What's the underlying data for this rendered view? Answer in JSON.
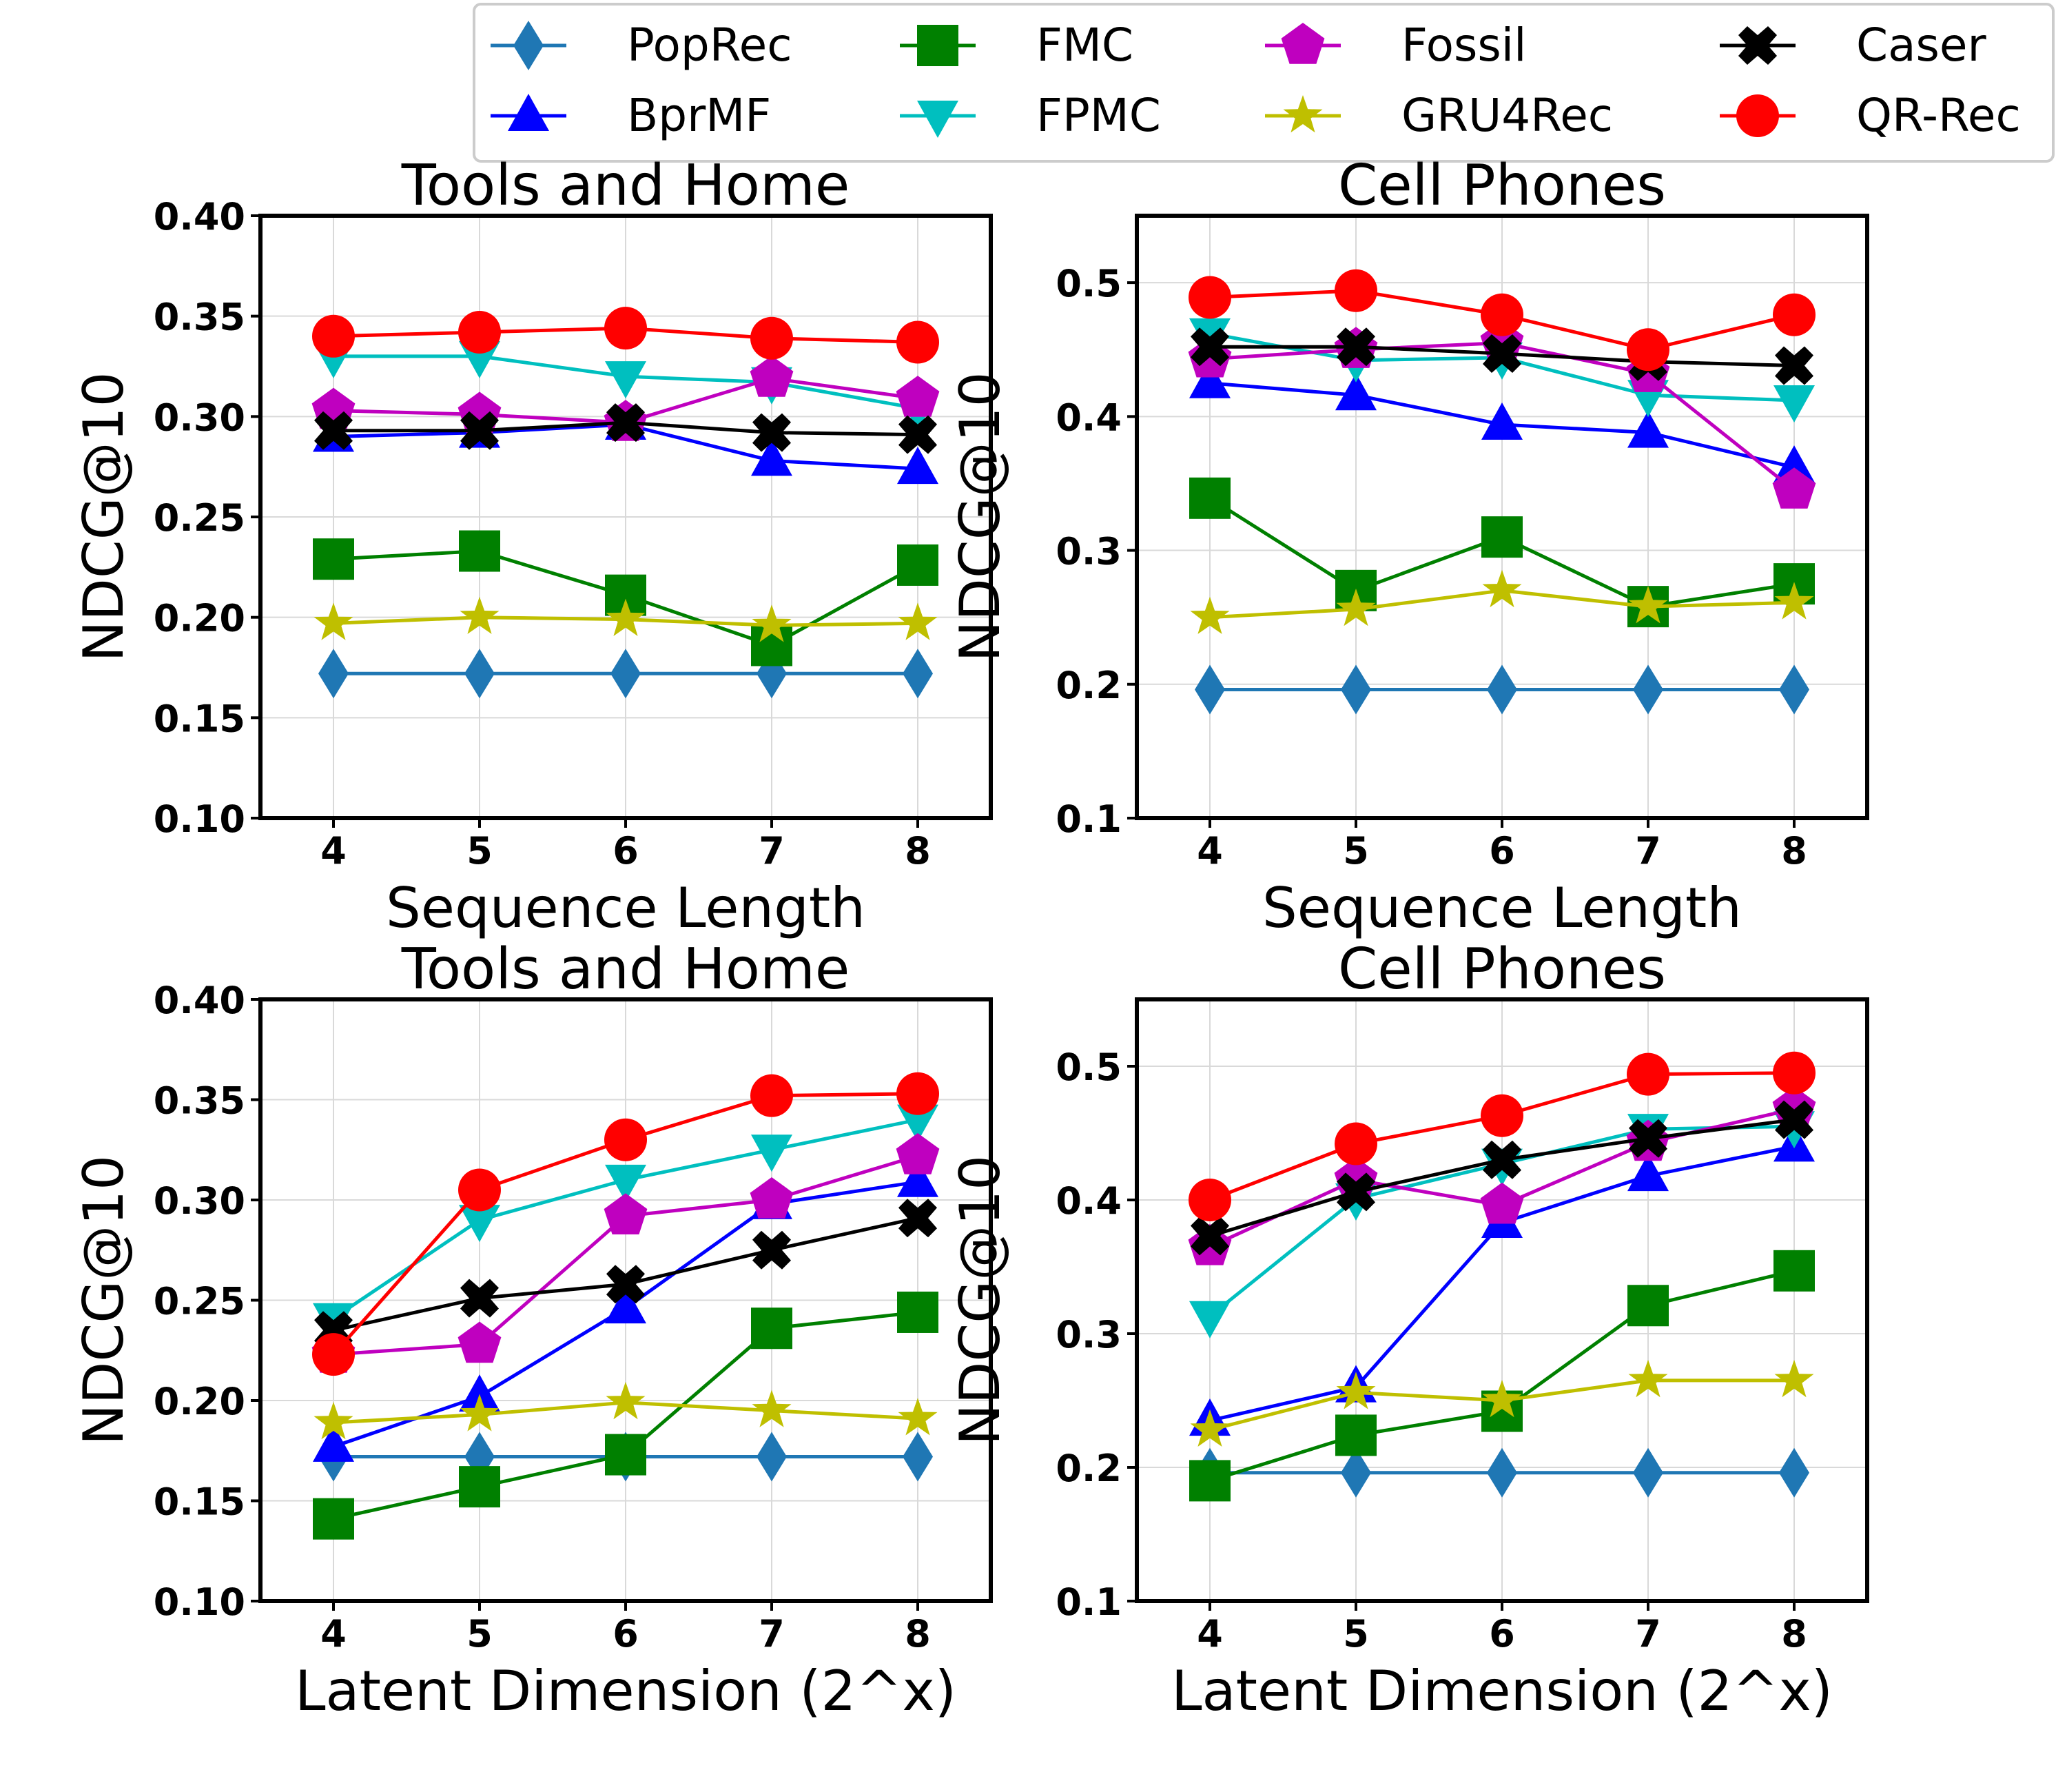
{
  "legend": [
    {
      "name": "PopRec",
      "color": "#1f77b4",
      "marker": "diamond"
    },
    {
      "name": "FMC",
      "color": "#008000",
      "marker": "square"
    },
    {
      "name": "Fossil",
      "color": "#bf00bf",
      "marker": "pentagon"
    },
    {
      "name": "Caser",
      "color": "#000000",
      "marker": "x"
    },
    {
      "name": "BprMF",
      "color": "#0000ff",
      "marker": "triangle-up"
    },
    {
      "name": "FPMC",
      "color": "#00bfbf",
      "marker": "triangle-down"
    },
    {
      "name": "GRU4Rec",
      "color": "#bfbf00",
      "marker": "star"
    },
    {
      "name": "QR-Rec",
      "color": "#ff0000",
      "marker": "circle"
    }
  ],
  "chart_data": [
    {
      "type": "line",
      "title": "Tools and Home",
      "xlabel": "Sequence Length",
      "ylabel": "NDCG@10",
      "x": [
        4,
        5,
        6,
        7,
        8
      ],
      "ylim": [
        0.1,
        0.4
      ],
      "yticks": [
        "0.10",
        "0.15",
        "0.20",
        "0.25",
        "0.30",
        "0.35",
        "0.40"
      ],
      "series": [
        {
          "name": "PopRec",
          "values": [
            0.172,
            0.172,
            0.172,
            0.172,
            0.172
          ]
        },
        {
          "name": "BprMF",
          "values": [
            0.29,
            0.292,
            0.296,
            0.278,
            0.274
          ]
        },
        {
          "name": "FMC",
          "values": [
            0.229,
            0.233,
            0.211,
            0.186,
            0.226
          ]
        },
        {
          "name": "FPMC",
          "values": [
            0.33,
            0.33,
            0.32,
            0.317,
            0.304
          ]
        },
        {
          "name": "Fossil",
          "values": [
            0.303,
            0.301,
            0.297,
            0.319,
            0.309
          ]
        },
        {
          "name": "GRU4Rec",
          "values": [
            0.197,
            0.2,
            0.199,
            0.196,
            0.197
          ]
        },
        {
          "name": "Caser",
          "values": [
            0.293,
            0.293,
            0.297,
            0.292,
            0.291
          ]
        },
        {
          "name": "QR-Rec",
          "values": [
            0.34,
            0.342,
            0.344,
            0.339,
            0.337
          ]
        }
      ]
    },
    {
      "type": "line",
      "title": "Cell Phones",
      "xlabel": "Sequence Length",
      "ylabel": "NDCG@10",
      "x": [
        4,
        5,
        6,
        7,
        8
      ],
      "ylim": [
        0.1,
        0.55
      ],
      "yticks": [
        "0.1",
        "0.2",
        "0.3",
        "0.4",
        "0.5"
      ],
      "series": [
        {
          "name": "PopRec",
          "values": [
            0.196,
            0.196,
            0.196,
            0.196,
            0.196
          ]
        },
        {
          "name": "BprMF",
          "values": [
            0.425,
            0.416,
            0.394,
            0.388,
            0.362
          ]
        },
        {
          "name": "FMC",
          "values": [
            0.339,
            0.27,
            0.31,
            0.258,
            0.275
          ]
        },
        {
          "name": "FPMC",
          "values": [
            0.462,
            0.442,
            0.444,
            0.416,
            0.412
          ]
        },
        {
          "name": "Fossil",
          "values": [
            0.443,
            0.45,
            0.455,
            0.432,
            0.345
          ]
        },
        {
          "name": "GRU4Rec",
          "values": [
            0.25,
            0.256,
            0.27,
            0.258,
            0.261
          ]
        },
        {
          "name": "Caser",
          "values": [
            0.452,
            0.452,
            0.447,
            0.441,
            0.438
          ]
        },
        {
          "name": "QR-Rec",
          "values": [
            0.489,
            0.494,
            0.476,
            0.45,
            0.476
          ]
        }
      ]
    },
    {
      "type": "line",
      "title": "Tools and Home",
      "xlabel": "Latent Dimension (2^x)",
      "ylabel": "NDCG@10",
      "x": [
        4,
        5,
        6,
        7,
        8
      ],
      "ylim": [
        0.1,
        0.4
      ],
      "yticks": [
        "0.10",
        "0.15",
        "0.20",
        "0.25",
        "0.30",
        "0.35",
        "0.40"
      ],
      "series": [
        {
          "name": "PopRec",
          "values": [
            0.172,
            0.172,
            0.172,
            0.172,
            0.172
          ]
        },
        {
          "name": "BprMF",
          "values": [
            0.177,
            0.202,
            0.246,
            0.298,
            0.309
          ]
        },
        {
          "name": "FMC",
          "values": [
            0.141,
            0.157,
            0.173,
            0.236,
            0.244
          ]
        },
        {
          "name": "FPMC",
          "values": [
            0.241,
            0.29,
            0.31,
            0.325,
            0.34
          ]
        },
        {
          "name": "Fossil",
          "values": [
            0.223,
            0.228,
            0.292,
            0.3,
            0.322
          ]
        },
        {
          "name": "GRU4Rec",
          "values": [
            0.189,
            0.193,
            0.199,
            0.195,
            0.191
          ]
        },
        {
          "name": "Caser",
          "values": [
            0.235,
            0.251,
            0.258,
            0.275,
            0.291
          ]
        },
        {
          "name": "QR-Rec",
          "values": [
            0.223,
            0.305,
            0.33,
            0.352,
            0.353
          ]
        }
      ]
    },
    {
      "type": "line",
      "title": "Cell Phones",
      "xlabel": "Latent Dimension (2^x)",
      "ylabel": "NDCG@10",
      "x": [
        4,
        5,
        6,
        7,
        8
      ],
      "ylim": [
        0.1,
        0.55
      ],
      "yticks": [
        "0.1",
        "0.2",
        "0.3",
        "0.4",
        "0.5"
      ],
      "series": [
        {
          "name": "PopRec",
          "values": [
            0.196,
            0.196,
            0.196,
            0.196,
            0.196
          ]
        },
        {
          "name": "BprMF",
          "values": [
            0.235,
            0.26,
            0.383,
            0.418,
            0.44
          ]
        },
        {
          "name": "FMC",
          "values": [
            0.19,
            0.224,
            0.242,
            0.321,
            0.347
          ]
        },
        {
          "name": "FPMC",
          "values": [
            0.313,
            0.401,
            0.427,
            0.453,
            0.455
          ]
        },
        {
          "name": "Fossil",
          "values": [
            0.365,
            0.415,
            0.396,
            0.443,
            0.468
          ]
        },
        {
          "name": "GRU4Rec",
          "values": [
            0.228,
            0.256,
            0.25,
            0.265,
            0.265
          ]
        },
        {
          "name": "Caser",
          "values": [
            0.373,
            0.406,
            0.43,
            0.446,
            0.46
          ]
        },
        {
          "name": "QR-Rec",
          "values": [
            0.4,
            0.442,
            0.463,
            0.494,
            0.495
          ]
        }
      ]
    }
  ]
}
